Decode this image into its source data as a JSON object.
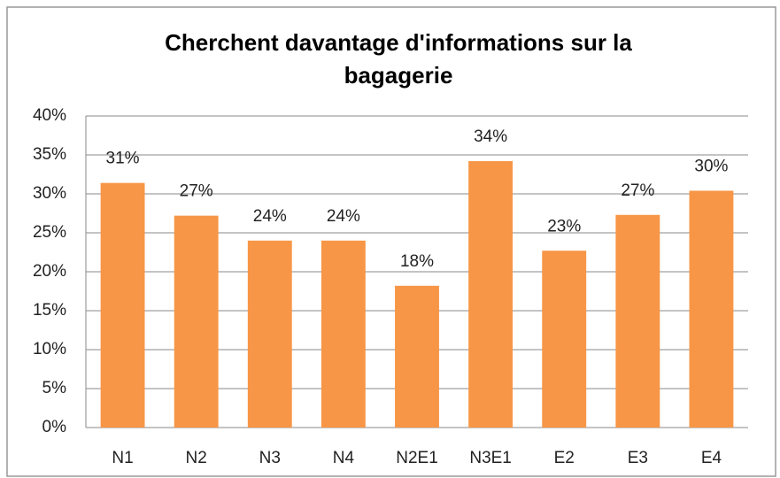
{
  "chart_data": {
    "type": "bar",
    "title": "Cherchent davantage d'informations sur la bagagerie",
    "categories": [
      "N1",
      "N2",
      "N3",
      "N4",
      "N2E1",
      "N3E1",
      "E2",
      "E3",
      "E4"
    ],
    "values": [
      31.4,
      27.2,
      24,
      24,
      18.2,
      34.2,
      22.7,
      27.3,
      30.4
    ],
    "value_labels": [
      "31%",
      "27%",
      "24%",
      "24%",
      "18%",
      "34%",
      "23%",
      "27%",
      "30%"
    ],
    "color": "#f79646",
    "ylim": [
      0,
      40
    ],
    "yticks": [
      {
        "value": 0,
        "label": "0%"
      },
      {
        "value": 5,
        "label": "5%"
      },
      {
        "value": 10,
        "label": "10%"
      },
      {
        "value": 15,
        "label": "15%"
      },
      {
        "value": 20,
        "label": "20%"
      },
      {
        "value": 25,
        "label": "25%"
      },
      {
        "value": 30,
        "label": "30%"
      },
      {
        "value": 35,
        "label": "35%"
      },
      {
        "value": 40,
        "label": "40%"
      }
    ],
    "grid": true
  }
}
